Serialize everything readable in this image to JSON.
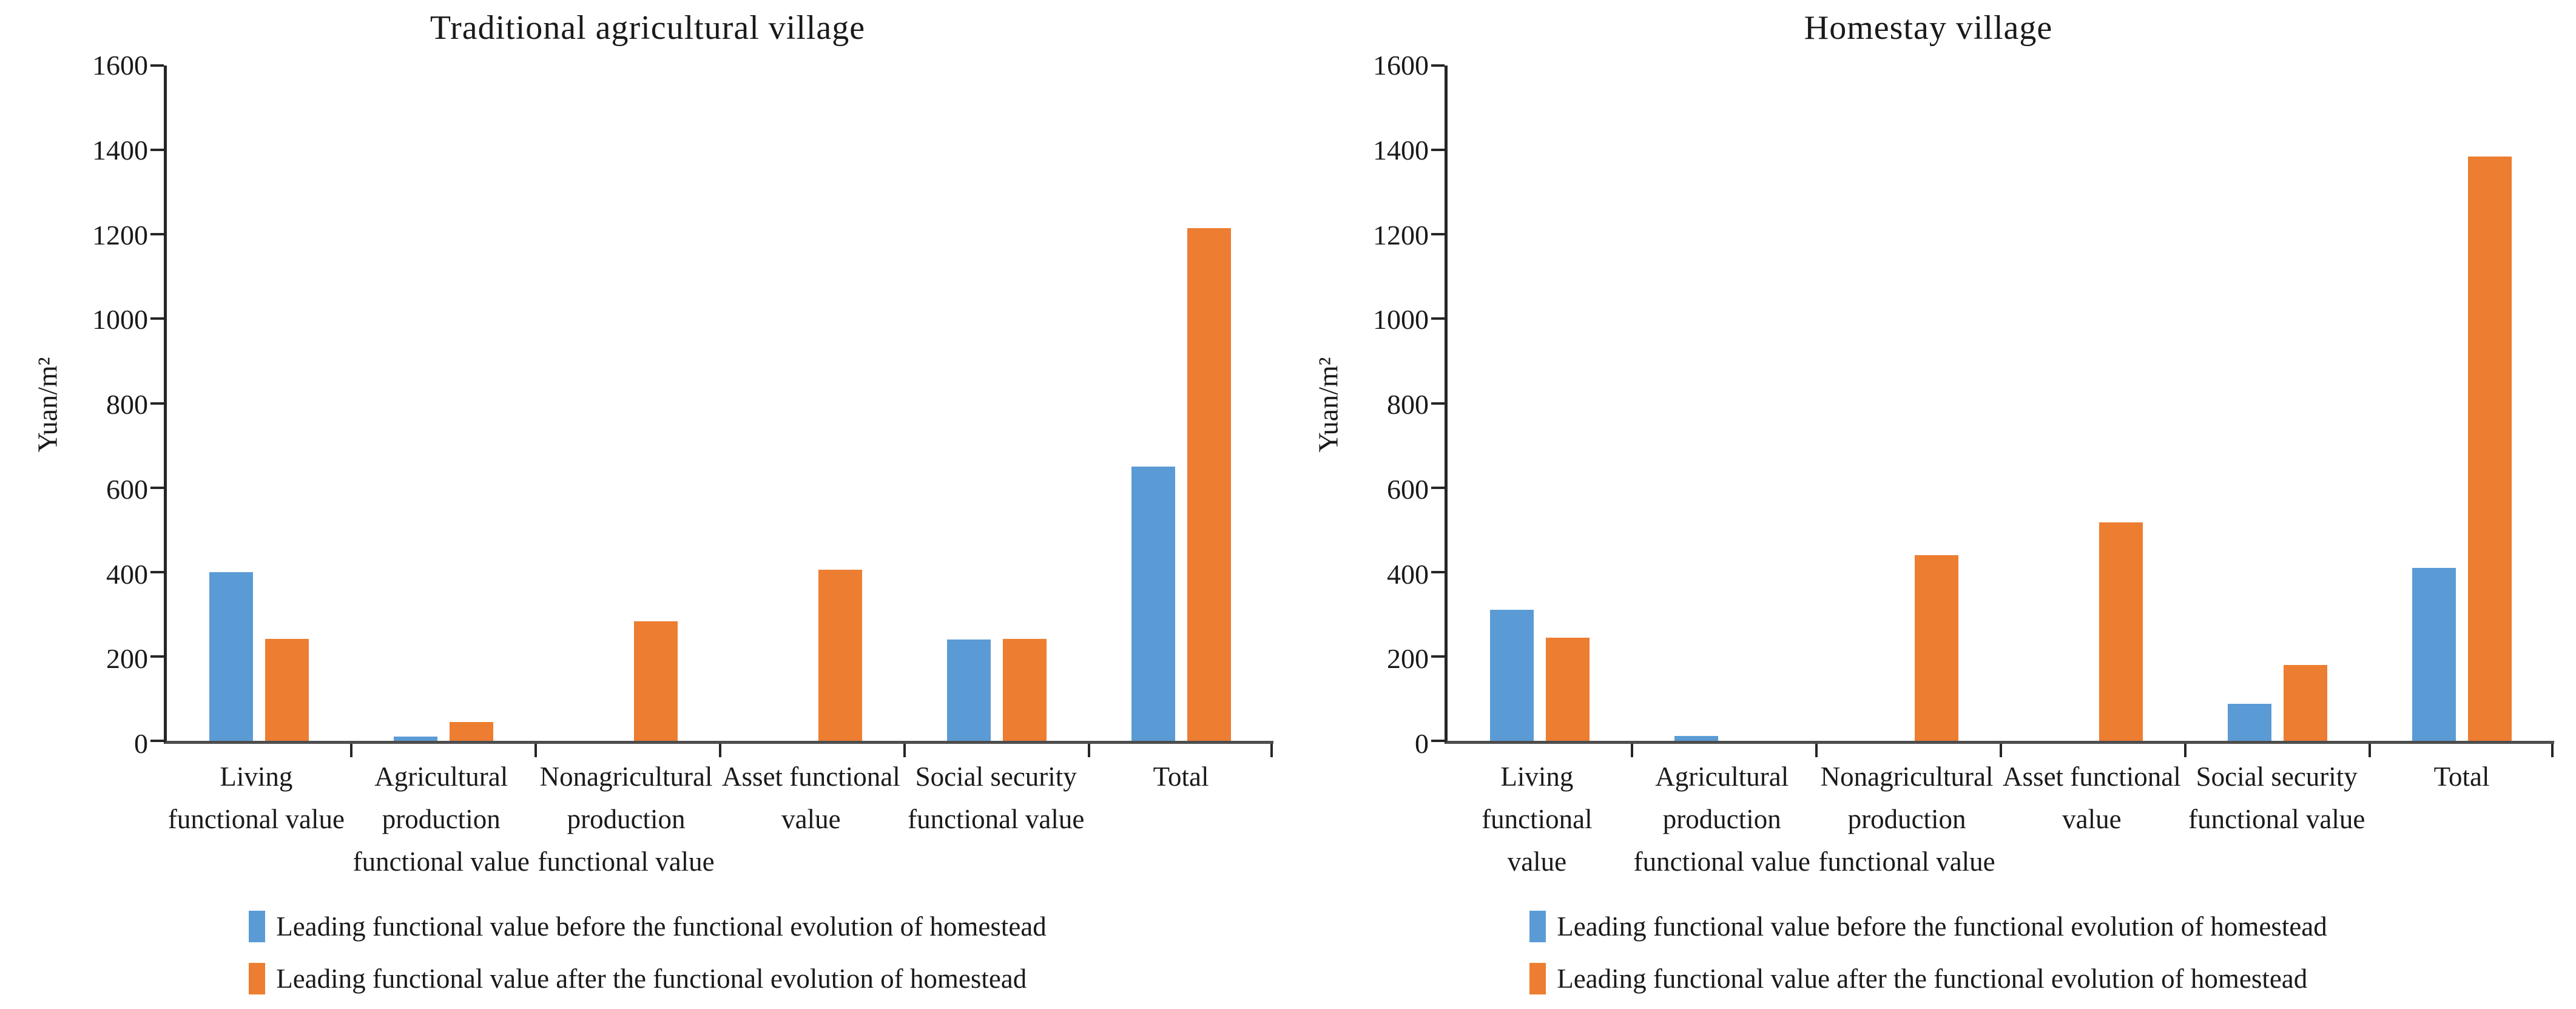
{
  "figure": {
    "colors": {
      "before": "#5B9BD5",
      "after": "#ED7D31"
    },
    "axis_color": "#262626",
    "legend": [
      {
        "key": "before",
        "label": "Leading functional value before the functional evolution of homestead"
      },
      {
        "key": "after",
        "label": "Leading functional value after the functional evolution of homestead"
      }
    ]
  },
  "chart_data": [
    {
      "type": "bar",
      "title": "Traditional agricultural village",
      "xlabel": "",
      "ylabel": "Yuan/m²",
      "ylim": [
        0,
        1600
      ],
      "ytick_step": 200,
      "grid": false,
      "legend_position": "bottom",
      "categories": [
        "Living functional value",
        "Agricultural production functional value",
        "Nonagricultural production functional value",
        "Asset functional value",
        "Social security functional value",
        "Total"
      ],
      "category_lines": [
        [
          "Living",
          "functional value"
        ],
        [
          "Agricultural",
          "production",
          "functional value"
        ],
        [
          "Nonagricultural",
          "production",
          "functional value"
        ],
        [
          "Asset functional",
          "value"
        ],
        [
          "Social security",
          "functional value"
        ],
        [
          "Total"
        ]
      ],
      "series": [
        {
          "name": "Leading functional value before the functional evolution of homestead",
          "values": [
            400,
            10,
            0,
            0,
            240,
            650
          ]
        },
        {
          "name": "Leading functional value after the functional evolution of homestead",
          "values": [
            242,
            45,
            283,
            405,
            242,
            1215
          ]
        }
      ]
    },
    {
      "type": "bar",
      "title": "Homestay village",
      "xlabel": "",
      "ylabel": "Yuan/m²",
      "ylim": [
        0,
        1600
      ],
      "ytick_step": 200,
      "grid": false,
      "legend_position": "bottom",
      "categories": [
        "Living functional value",
        "Agricultural production functional value",
        "Nonagricultural production functional value",
        "Asset functional value",
        "Social security functional value",
        "Total"
      ],
      "category_lines": [
        [
          "Living functional",
          "value"
        ],
        [
          "Agricultural",
          "production",
          "functional value"
        ],
        [
          "Nonagricultural",
          "production",
          "functional value"
        ],
        [
          "Asset functional",
          "value"
        ],
        [
          "Social security",
          "functional value"
        ],
        [
          "Total"
        ]
      ],
      "series": [
        {
          "name": "Leading functional value before the functional evolution of homestead",
          "values": [
            310,
            12,
            0,
            0,
            88,
            410
          ]
        },
        {
          "name": "Leading functional value after the functional evolution of homestead",
          "values": [
            245,
            0,
            440,
            517,
            180,
            1385
          ]
        }
      ]
    }
  ]
}
